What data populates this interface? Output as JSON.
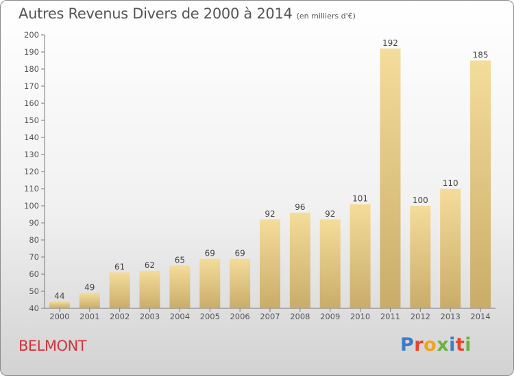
{
  "header": {
    "title": "Autres Revenus Divers de 2000 à 2014",
    "unit": "(en milliers d'€)"
  },
  "footer": {
    "place": "BELMONT",
    "logo_letters": [
      "P",
      "r",
      "o",
      "x",
      "i",
      "t",
      "i"
    ],
    "logo_colors": [
      "#3d7cc9",
      "#e8432d",
      "#f3a21b",
      "#6cb23e",
      "#3d7cc9",
      "#e8432d",
      "#6cb23e"
    ]
  },
  "colors": {
    "bar_light": "#f4dc9a",
    "bar_dark": "#c9ac6a",
    "axis": "#777777",
    "grid": "#d9d9d9"
  },
  "chart_data": {
    "type": "bar",
    "title": "Autres Revenus Divers de 2000 à 2014",
    "subtitle": "(en milliers d'€)",
    "categories": [
      "2000",
      "2001",
      "2002",
      "2003",
      "2004",
      "2005",
      "2006",
      "2007",
      "2008",
      "2009",
      "2010",
      "2011",
      "2012",
      "2013",
      "2014"
    ],
    "values": [
      44,
      49,
      61,
      62,
      65,
      69,
      69,
      92,
      96,
      92,
      101,
      192,
      100,
      110,
      185
    ],
    "ylim": [
      40,
      200
    ],
    "yticks": [
      40,
      50,
      60,
      70,
      80,
      90,
      100,
      110,
      120,
      130,
      140,
      150,
      160,
      170,
      180,
      190,
      200
    ],
    "grid": false,
    "data_labels": true
  }
}
